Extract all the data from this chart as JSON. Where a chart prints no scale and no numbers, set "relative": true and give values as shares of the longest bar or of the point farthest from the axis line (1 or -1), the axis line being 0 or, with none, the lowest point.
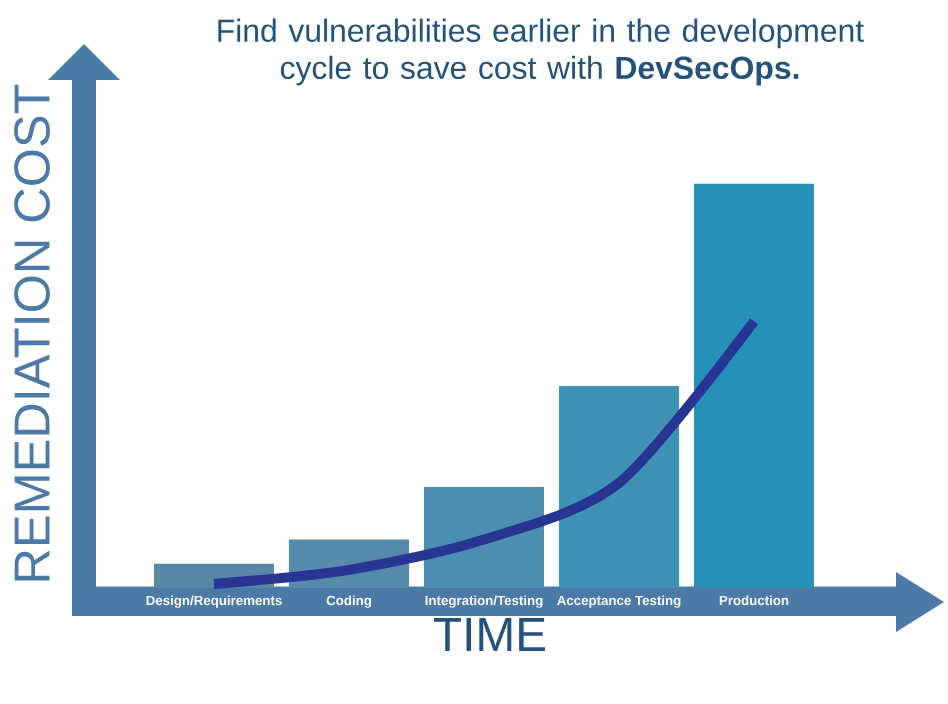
{
  "chart_data": {
    "type": "bar",
    "relative": true,
    "title": "Find vulnerabilities earlier in the development cycle to save cost with **DevSecOps.**",
    "xlabel": "TIME",
    "ylabel": "REMEDIATION COST",
    "categories": [
      "Design/Requirements",
      "Coding",
      "Integration/Testing",
      "Acceptance Testing",
      "Production"
    ],
    "series": [
      {
        "colors": [
          "#5a87a6",
          "#568bab",
          "#4d8fb1",
          "#3f92b6",
          "#2790b9"
        ],
        "values": [
          0.06,
          0.12,
          0.25,
          0.5,
          1
        ]
      },
      {
        "type": "line",
        "color": "#283593",
        "marker": "none",
        "values": [
          0.01,
          0.045,
          0.12,
          0.26,
          0.66
        ]
      }
    ]
  }
}
